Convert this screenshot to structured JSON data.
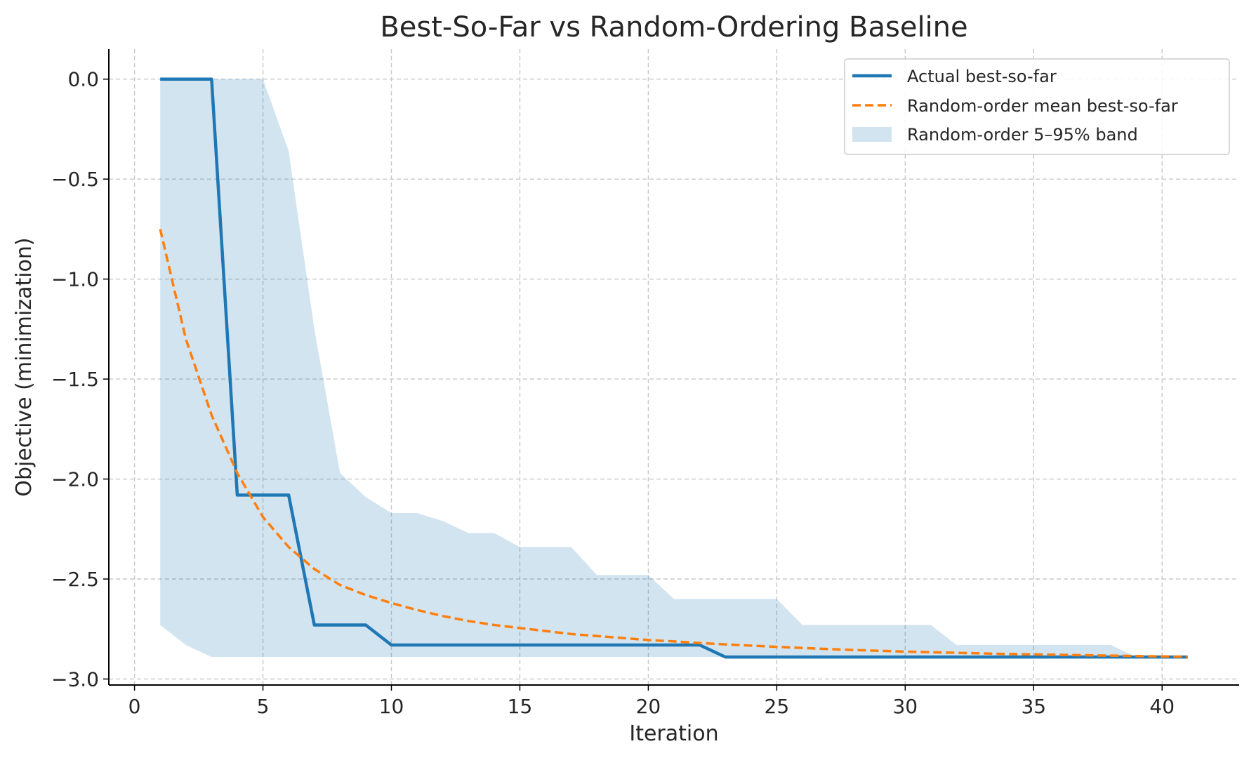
{
  "chart_data": {
    "type": "line",
    "title": "Best-So-Far vs Random-Ordering Baseline",
    "xlabel": "Iteration",
    "ylabel": "Objective (minimization)",
    "xlim": [
      -1,
      43
    ],
    "ylim": [
      -3.03,
      0.15
    ],
    "xticks": [
      0,
      5,
      10,
      15,
      20,
      25,
      30,
      35,
      40
    ],
    "yticks": [
      0.0,
      -0.5,
      -1.0,
      -1.5,
      -2.0,
      -2.5,
      -3.0
    ],
    "xtick_labels": [
      "0",
      "5",
      "10",
      "15",
      "20",
      "25",
      "30",
      "35",
      "40"
    ],
    "ytick_labels": [
      "0.0",
      "−0.5",
      "−1.0",
      "−1.5",
      "−2.0",
      "−2.5",
      "−3.0"
    ],
    "grid": true,
    "legend_position": "top-right",
    "x": [
      1,
      2,
      3,
      4,
      5,
      6,
      7,
      8,
      9,
      10,
      11,
      12,
      13,
      14,
      15,
      16,
      17,
      18,
      19,
      20,
      21,
      22,
      23,
      24,
      25,
      26,
      27,
      28,
      29,
      30,
      31,
      32,
      33,
      34,
      35,
      36,
      37,
      38,
      39,
      40,
      41
    ],
    "series": [
      {
        "name": "Actual best-so-far",
        "style": "solid",
        "color": "#1f77b4",
        "values": [
          0,
          0,
          0,
          -2.08,
          -2.08,
          -2.08,
          -2.73,
          -2.73,
          -2.73,
          -2.83,
          -2.83,
          -2.83,
          -2.83,
          -2.83,
          -2.83,
          -2.83,
          -2.83,
          -2.83,
          -2.83,
          -2.83,
          -2.83,
          -2.83,
          -2.89,
          -2.89,
          -2.89,
          -2.89,
          -2.89,
          -2.89,
          -2.89,
          -2.89,
          -2.89,
          -2.89,
          -2.89,
          -2.89,
          -2.89,
          -2.89,
          -2.89,
          -2.89,
          -2.89,
          -2.89,
          -2.89
        ]
      },
      {
        "name": "Random-order mean best-so-far",
        "style": "dashed",
        "color": "#ff7f0e",
        "values": [
          -0.75,
          -1.3,
          -1.68,
          -1.97,
          -2.19,
          -2.34,
          -2.45,
          -2.53,
          -2.58,
          -2.62,
          -2.655,
          -2.685,
          -2.71,
          -2.73,
          -2.745,
          -2.76,
          -2.775,
          -2.785,
          -2.795,
          -2.805,
          -2.812,
          -2.82,
          -2.827,
          -2.833,
          -2.839,
          -2.845,
          -2.85,
          -2.855,
          -2.859,
          -2.863,
          -2.866,
          -2.869,
          -2.872,
          -2.875,
          -2.877,
          -2.879,
          -2.881,
          -2.883,
          -2.885,
          -2.887,
          -2.889
        ]
      }
    ],
    "band": {
      "name": "Random-order 5–95% band",
      "color": "#1f77b4",
      "opacity": 0.2,
      "upper": [
        0,
        0,
        0,
        0,
        0,
        -0.36,
        -1.25,
        -1.97,
        -2.09,
        -2.17,
        -2.17,
        -2.21,
        -2.27,
        -2.27,
        -2.34,
        -2.34,
        -2.34,
        -2.48,
        -2.48,
        -2.48,
        -2.6,
        -2.6,
        -2.6,
        -2.6,
        -2.6,
        -2.73,
        -2.73,
        -2.73,
        -2.73,
        -2.73,
        -2.73,
        -2.83,
        -2.83,
        -2.83,
        -2.83,
        -2.83,
        -2.83,
        -2.83,
        -2.89,
        -2.89,
        -2.89
      ],
      "lower": [
        -2.73,
        -2.83,
        -2.89,
        -2.89,
        -2.89,
        -2.89,
        -2.89,
        -2.89,
        -2.89,
        -2.89,
        -2.89,
        -2.89,
        -2.89,
        -2.89,
        -2.89,
        -2.89,
        -2.89,
        -2.89,
        -2.89,
        -2.89,
        -2.89,
        -2.89,
        -2.89,
        -2.89,
        -2.89,
        -2.89,
        -2.89,
        -2.89,
        -2.89,
        -2.89,
        -2.89,
        -2.89,
        -2.89,
        -2.89,
        -2.89,
        -2.89,
        -2.89,
        -2.89,
        -2.89,
        -2.89,
        -2.89
      ]
    }
  }
}
